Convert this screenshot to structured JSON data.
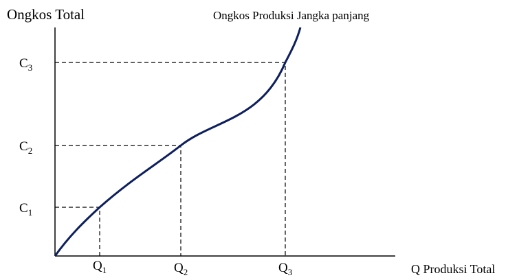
{
  "axes": {
    "y_title": "Ongkos Total",
    "x_title": "Q Produksi Total"
  },
  "curve": {
    "label": "Ongkos Produksi Jangka panjang"
  },
  "y_labels": [
    {
      "letter": "C",
      "index": "1"
    },
    {
      "letter": "C",
      "index": "2"
    },
    {
      "letter": "C",
      "index": "3"
    }
  ],
  "x_labels": [
    {
      "letter": "Q",
      "index": "1"
    },
    {
      "letter": "Q",
      "index": "2"
    },
    {
      "letter": "Q",
      "index": "3"
    }
  ]
}
